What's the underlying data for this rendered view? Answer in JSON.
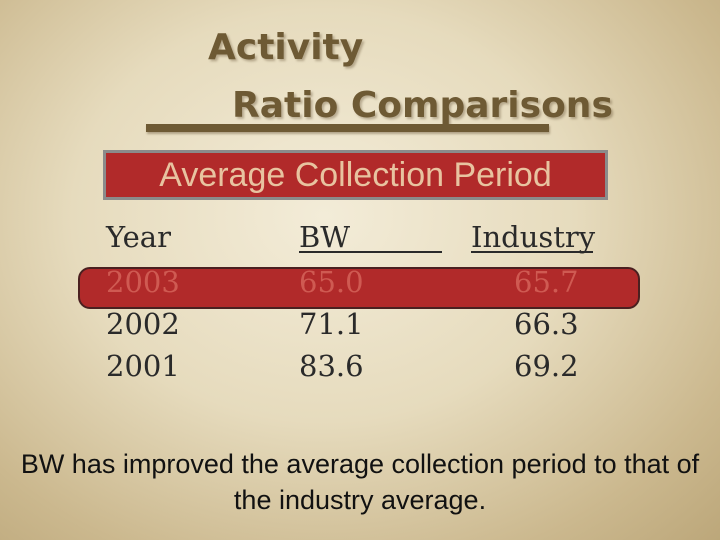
{
  "title": {
    "line1": "Activity",
    "line2": "Ratio Comparisons"
  },
  "subtitle": "Average Collection Period",
  "table": {
    "headers": [
      "Year",
      "BW",
      "Industry"
    ],
    "rows": [
      [
        "2003",
        "65.0",
        "65.7"
      ],
      [
        "2002",
        "71.1",
        "66.3"
      ],
      [
        "2001",
        "83.6",
        "69.2"
      ]
    ]
  },
  "note": "BW has improved the average collection period to that of the industry average.",
  "colors": {
    "accent_red": "#b12a2a",
    "title_brown": "#6e5a34"
  }
}
